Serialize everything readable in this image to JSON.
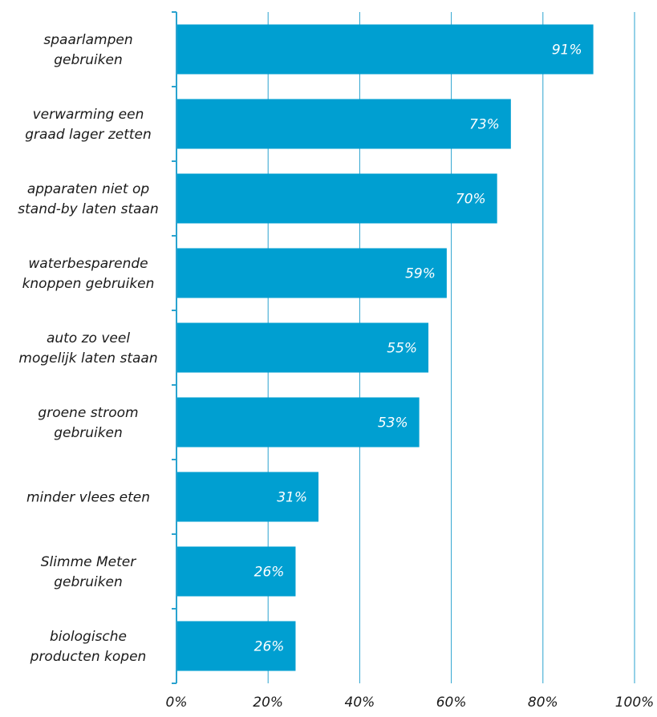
{
  "chart_data": {
    "type": "bar",
    "orientation": "horizontal",
    "categories": [
      [
        "spaarlampen",
        "gebruiken"
      ],
      [
        "verwarming een",
        "graad lager zetten"
      ],
      [
        "apparaten niet op",
        "stand-by laten staan"
      ],
      [
        "waterbesparende",
        "knoppen gebruiken"
      ],
      [
        "auto zo veel",
        "mogelijk laten staan"
      ],
      [
        "groene stroom",
        "gebruiken"
      ],
      [
        "minder vlees eten"
      ],
      [
        "Slimme Meter",
        "gebruiken"
      ],
      [
        "biologische",
        "producten kopen"
      ]
    ],
    "values": [
      91,
      73,
      70,
      59,
      55,
      53,
      31,
      26,
      26
    ],
    "value_labels": [
      "91%",
      "73%",
      "70%",
      "59%",
      "55%",
      "53%",
      "31%",
      "26%",
      "26%"
    ],
    "xlim": [
      0,
      100
    ],
    "x_ticks": [
      "0%",
      "20%",
      "40%",
      "60%",
      "80%",
      "100%"
    ],
    "title": "",
    "xlabel": "",
    "ylabel": "",
    "grid": "vertical",
    "legend": "none"
  },
  "colors": {
    "bar": "#009fd1",
    "grid": "#2aa3cf",
    "axis": "#2aa3cf"
  }
}
